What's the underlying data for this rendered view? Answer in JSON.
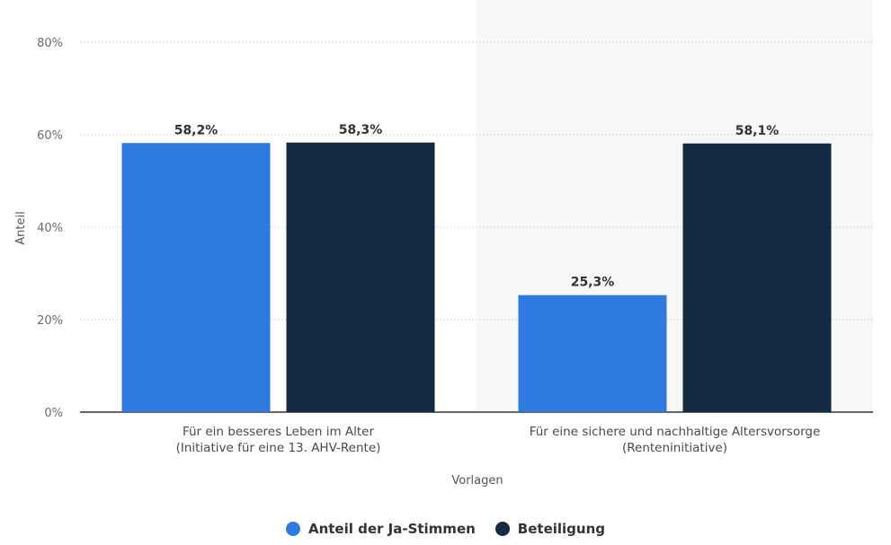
{
  "chart_data": {
    "type": "bar",
    "categories": [
      [
        "Für ein besseres Leben im Alter",
        "(Initiative für eine 13. AHV-Rente)"
      ],
      [
        "Für eine sichere und nachhaltige Altersvorsorge",
        "(Renteninitiative)"
      ]
    ],
    "series": [
      {
        "name": "Anteil der Ja-Stimmen",
        "values": [
          58.2,
          25.3
        ],
        "labels": [
          "58,2%",
          "25,3%"
        ],
        "color": "#2f7ae0"
      },
      {
        "name": "Beteiligung",
        "values": [
          58.3,
          58.1
        ],
        "labels": [
          "58,3%",
          "58,1%"
        ],
        "color": "#142a42"
      }
    ],
    "xlabel": "Vorlagen",
    "ylabel": "Anteil",
    "ylim": [
      0,
      80
    ],
    "yticks": [
      {
        "value": 0,
        "label": "0%"
      },
      {
        "value": 20,
        "label": "20%"
      },
      {
        "value": 40,
        "label": "40%"
      },
      {
        "value": 60,
        "label": "60%"
      },
      {
        "value": 80,
        "label": "80%"
      }
    ],
    "grid": true,
    "legend_position": "bottom",
    "highlighted_category_background": "#f7f7f7"
  }
}
